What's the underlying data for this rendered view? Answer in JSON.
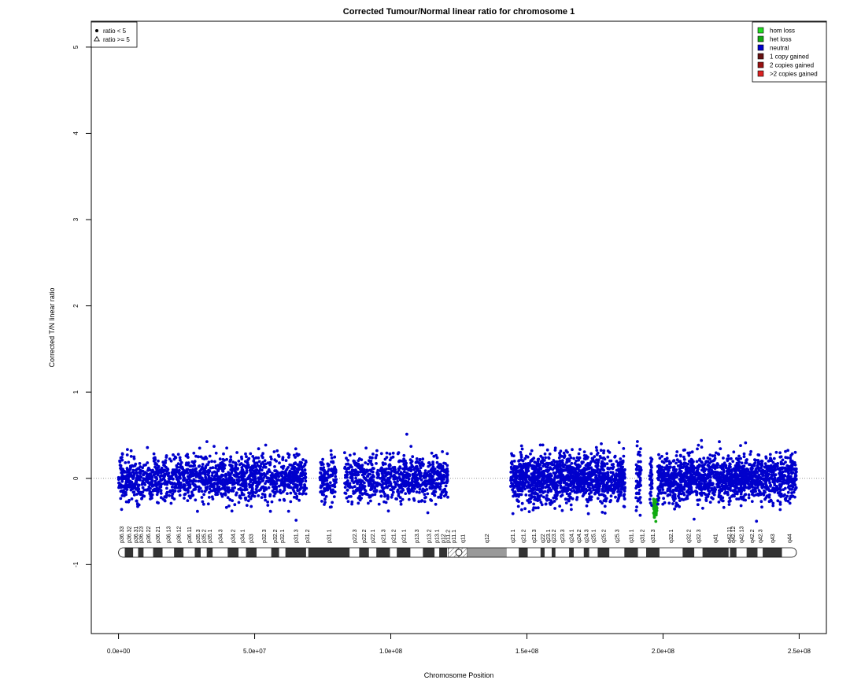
{
  "chart_data": {
    "type": "scatter",
    "title": "Corrected Tumour/Normal linear ratio for chromosome  1",
    "xlabel": "Chromosome Position",
    "ylabel": "Corrected T/N linear ratio",
    "xlim": [
      -10000000,
      260000000
    ],
    "ylim": [
      -1.8,
      5.3
    ],
    "x_ticks": [
      0,
      50000000,
      100000000,
      150000000,
      200000000,
      250000000
    ],
    "x_tick_labels": [
      "0.0e+00",
      "5.0e+07",
      "1.0e+08",
      "1.5e+08",
      "2.0e+08",
      "2.5e+08"
    ],
    "y_ticks": [
      -1,
      0,
      1,
      2,
      3,
      4,
      5
    ],
    "y_tick_labels": [
      "-1",
      "0",
      "1",
      "2",
      "3",
      "4",
      "5"
    ],
    "reference_line": {
      "y": 0,
      "style": "dotted"
    },
    "shape_legend": {
      "placement": "top-left",
      "items": [
        {
          "label": "ratio < 5",
          "symbol": "dot"
        },
        {
          "label": "ratio >= 5",
          "symbol": "triangle"
        }
      ]
    },
    "color_legend": {
      "placement": "top-right",
      "items": [
        {
          "label": "hom loss",
          "color": "#22dd22"
        },
        {
          "label": "het loss",
          "color": "#11aa11"
        },
        {
          "label": "neutral",
          "color": "#0000cc"
        },
        {
          "label": "1 copy gained",
          "color": "#661111"
        },
        {
          "label": "2 copies gained",
          "color": "#991111"
        },
        {
          "label": ">2 copies gained",
          "color": "#dd2222"
        }
      ]
    },
    "point_colors": {
      "neutral": "#0000cc",
      "het_loss": "#11aa11"
    },
    "segments": [
      {
        "start": 0,
        "end": 121000000,
        "state": "neutral",
        "mean": 0.0,
        "sd": 0.13,
        "points": 2600
      },
      {
        "start": 144000000,
        "end": 196000000,
        "state": "neutral",
        "mean": 0.0,
        "sd": 0.14,
        "points": 1700
      },
      {
        "start": 196500000,
        "end": 197800000,
        "state": "het_loss",
        "mean": -0.37,
        "sd": 0.06,
        "points": 45
      },
      {
        "start": 198000000,
        "end": 249000000,
        "state": "neutral",
        "mean": 0.0,
        "sd": 0.13,
        "points": 1500
      }
    ],
    "gaps": [
      {
        "start": 69000000,
        "end": 74000000
      },
      {
        "start": 80000000,
        "end": 83000000
      },
      {
        "start": 121000000,
        "end": 144000000
      },
      {
        "start": 186000000,
        "end": 190000000
      },
      {
        "start": 192000000,
        "end": 195000000
      }
    ],
    "ideogram": {
      "y": -0.86,
      "length": 249000000,
      "centromere": 125000000,
      "bands": [
        {
          "name": "p36.33",
          "start": 0,
          "end": 2300000,
          "stain": "gneg"
        },
        {
          "name": "p36.32",
          "start": 2300000,
          "end": 5400000,
          "stain": "gpos"
        },
        {
          "name": "p36.31",
          "start": 5400000,
          "end": 7200000,
          "stain": "gneg"
        },
        {
          "name": "p36.23",
          "start": 7200000,
          "end": 9200000,
          "stain": "gpos"
        },
        {
          "name": "p36.22",
          "start": 9200000,
          "end": 12700000,
          "stain": "gneg"
        },
        {
          "name": "p36.21",
          "start": 12700000,
          "end": 16200000,
          "stain": "gpos"
        },
        {
          "name": "p36.13",
          "start": 16200000,
          "end": 20400000,
          "stain": "gneg"
        },
        {
          "name": "p36.12",
          "start": 20400000,
          "end": 23900000,
          "stain": "gpos"
        },
        {
          "name": "p36.11",
          "start": 23900000,
          "end": 28000000,
          "stain": "gneg"
        },
        {
          "name": "p35.3",
          "start": 28000000,
          "end": 30200000,
          "stain": "gpos"
        },
        {
          "name": "p35.2",
          "start": 30200000,
          "end": 32400000,
          "stain": "gneg"
        },
        {
          "name": "p35.1",
          "start": 32400000,
          "end": 34600000,
          "stain": "gpos"
        },
        {
          "name": "p34.3",
          "start": 34600000,
          "end": 40100000,
          "stain": "gneg"
        },
        {
          "name": "p34.2",
          "start": 40100000,
          "end": 44100000,
          "stain": "gpos"
        },
        {
          "name": "p34.1",
          "start": 44100000,
          "end": 46800000,
          "stain": "gneg"
        },
        {
          "name": "p33",
          "start": 46800000,
          "end": 50700000,
          "stain": "gpos"
        },
        {
          "name": "p32.3",
          "start": 50700000,
          "end": 56100000,
          "stain": "gneg"
        },
        {
          "name": "p32.2",
          "start": 56100000,
          "end": 59000000,
          "stain": "gpos"
        },
        {
          "name": "p32.1",
          "start": 59000000,
          "end": 61300000,
          "stain": "gneg"
        },
        {
          "name": "p31.3",
          "start": 61300000,
          "end": 68900000,
          "stain": "gpos"
        },
        {
          "name": "p31.2",
          "start": 68900000,
          "end": 69700000,
          "stain": "gneg"
        },
        {
          "name": "p31.1",
          "start": 69700000,
          "end": 84900000,
          "stain": "gpos"
        },
        {
          "name": "p22.3",
          "start": 84900000,
          "end": 88400000,
          "stain": "gneg"
        },
        {
          "name": "p22.2",
          "start": 88400000,
          "end": 92000000,
          "stain": "gpos"
        },
        {
          "name": "p22.1",
          "start": 92000000,
          "end": 94700000,
          "stain": "gneg"
        },
        {
          "name": "p21.3",
          "start": 94700000,
          "end": 99700000,
          "stain": "gpos"
        },
        {
          "name": "p21.2",
          "start": 99700000,
          "end": 102200000,
          "stain": "gneg"
        },
        {
          "name": "p21.1",
          "start": 102200000,
          "end": 107200000,
          "stain": "gpos"
        },
        {
          "name": "p13.3",
          "start": 107200000,
          "end": 111800000,
          "stain": "gneg"
        },
        {
          "name": "p13.2",
          "start": 111800000,
          "end": 116100000,
          "stain": "gpos"
        },
        {
          "name": "p13.1",
          "start": 116100000,
          "end": 117800000,
          "stain": "gneg"
        },
        {
          "name": "p12",
          "start": 117800000,
          "end": 120700000,
          "stain": "gpos"
        },
        {
          "name": "p11.2",
          "start": 120700000,
          "end": 121100000,
          "stain": "gneg"
        },
        {
          "name": "p11.1",
          "start": 121100000,
          "end": 125000000,
          "stain": "acen"
        },
        {
          "name": "q11",
          "start": 125000000,
          "end": 128000000,
          "stain": "acen"
        },
        {
          "name": "q12",
          "start": 128000000,
          "end": 142600000,
          "stain": "gvar"
        },
        {
          "name": "q21.1",
          "start": 142600000,
          "end": 147000000,
          "stain": "gneg"
        },
        {
          "name": "q21.2",
          "start": 147000000,
          "end": 150300000,
          "stain": "gpos"
        },
        {
          "name": "q21.3",
          "start": 150300000,
          "end": 155000000,
          "stain": "gneg"
        },
        {
          "name": "q22",
          "start": 155000000,
          "end": 156500000,
          "stain": "gpos"
        },
        {
          "name": "q23.1",
          "start": 156500000,
          "end": 159100000,
          "stain": "gneg"
        },
        {
          "name": "q23.2",
          "start": 159100000,
          "end": 160500000,
          "stain": "gpos"
        },
        {
          "name": "q23.3",
          "start": 160500000,
          "end": 165500000,
          "stain": "gneg"
        },
        {
          "name": "q24.1",
          "start": 165500000,
          "end": 167200000,
          "stain": "gpos"
        },
        {
          "name": "q24.2",
          "start": 167200000,
          "end": 170900000,
          "stain": "gneg"
        },
        {
          "name": "q24.3",
          "start": 170900000,
          "end": 172900000,
          "stain": "gpos"
        },
        {
          "name": "q25.1",
          "start": 172900000,
          "end": 176000000,
          "stain": "gneg"
        },
        {
          "name": "q25.2",
          "start": 176000000,
          "end": 180300000,
          "stain": "gpos"
        },
        {
          "name": "q25.3",
          "start": 180300000,
          "end": 185800000,
          "stain": "gneg"
        },
        {
          "name": "q31.1",
          "start": 185800000,
          "end": 190800000,
          "stain": "gpos"
        },
        {
          "name": "q31.2",
          "start": 190800000,
          "end": 193800000,
          "stain": "gneg"
        },
        {
          "name": "q31.3",
          "start": 193800000,
          "end": 198700000,
          "stain": "gpos"
        },
        {
          "name": "q32.1",
          "start": 198700000,
          "end": 207200000,
          "stain": "gneg"
        },
        {
          "name": "q32.2",
          "start": 207200000,
          "end": 211500000,
          "stain": "gpos"
        },
        {
          "name": "q32.3",
          "start": 211500000,
          "end": 214500000,
          "stain": "gneg"
        },
        {
          "name": "q41",
          "start": 214500000,
          "end": 224100000,
          "stain": "gpos"
        },
        {
          "name": "q42.11",
          "start": 224100000,
          "end": 224600000,
          "stain": "gneg"
        },
        {
          "name": "q42.12",
          "start": 224600000,
          "end": 227000000,
          "stain": "gpos"
        },
        {
          "name": "q42.13",
          "start": 227000000,
          "end": 230700000,
          "stain": "gneg"
        },
        {
          "name": "q42.2",
          "start": 230700000,
          "end": 234700000,
          "stain": "gpos"
        },
        {
          "name": "q42.3",
          "start": 234700000,
          "end": 236600000,
          "stain": "gneg"
        },
        {
          "name": "q43",
          "start": 236600000,
          "end": 243700000,
          "stain": "gpos"
        },
        {
          "name": "q44",
          "start": 243700000,
          "end": 249000000,
          "stain": "gneg"
        }
      ]
    }
  }
}
